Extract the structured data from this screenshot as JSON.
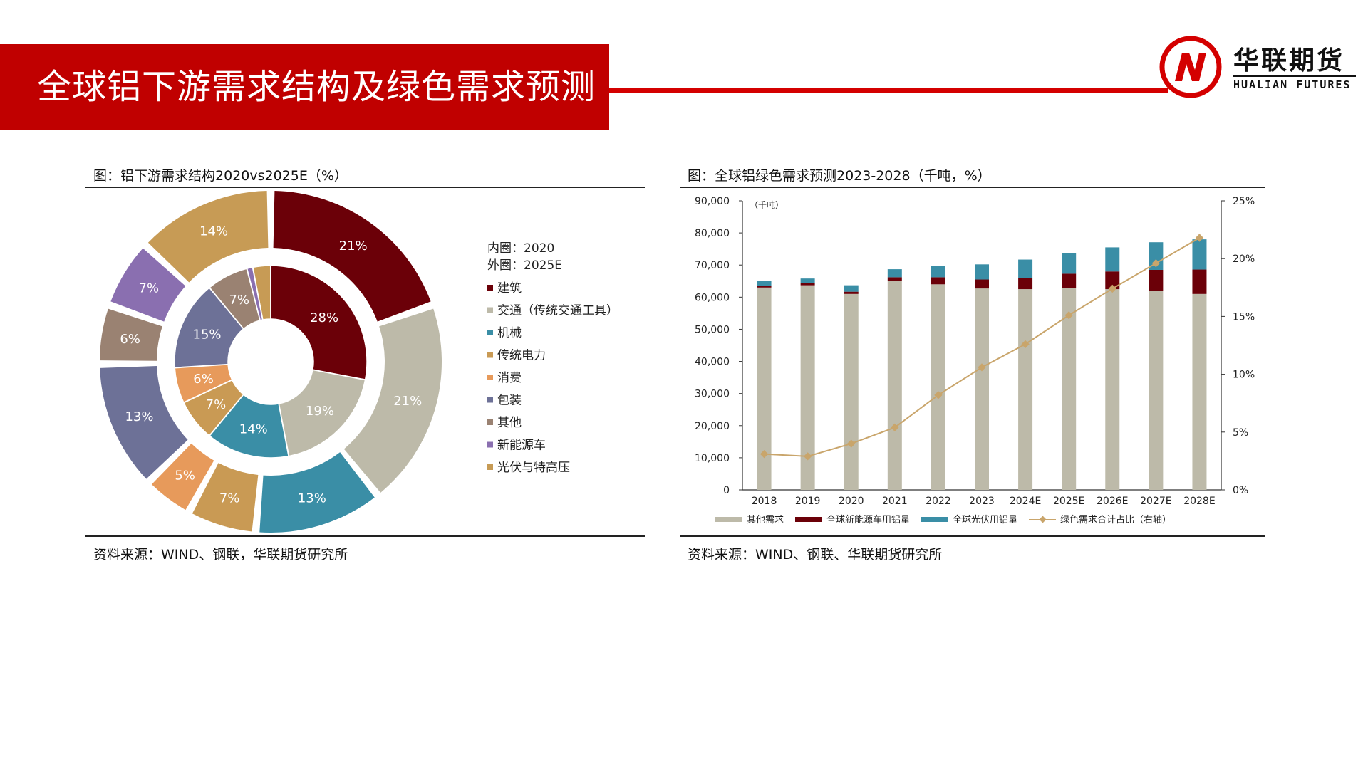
{
  "page": {
    "title": "全球铝下游需求结构及绿色需求预测"
  },
  "logo": {
    "name_cn": "华联期货",
    "name_en": "HUALIAN FUTURES",
    "icon": "hualian-logo-icon"
  },
  "colors": {
    "title_bar": "#c00000",
    "accent_line": "#d40000"
  },
  "left_figure": {
    "caption": "图：铝下游需求结构2020vs2025E（%）",
    "source": "资料来源：WIND、钢联，华联期货研究所",
    "legend_title_inner": "内圈：2020",
    "legend_title_outer": "外圈：2025E"
  },
  "right_figure": {
    "caption": "图：全球铝绿色需求预测2023-2028（千吨，%）",
    "source": "资料来源：WIND、钢联、华联期货研究所"
  },
  "chart_data": [
    {
      "type": "pie",
      "subtype": "double-donut",
      "categories": [
        "建筑",
        "交通（传统交通工具）",
        "机械",
        "传统电力",
        "消费",
        "包装",
        "其他",
        "新能源车",
        "光伏与特高压"
      ],
      "colors": [
        "#6b0008",
        "#bdbaa9",
        "#3a8ea6",
        "#c99a54",
        "#e79a5b",
        "#6d7197",
        "#9a8272",
        "#8a6fb0",
        "#c79b55"
      ],
      "series": [
        {
          "name": "内圈：2020",
          "values": [
            28,
            19,
            14,
            7,
            6,
            15,
            7,
            1,
            3
          ],
          "labels": [
            "28%",
            "19%",
            "14%",
            "7%",
            "6%",
            "15%",
            "7%",
            "",
            ""
          ]
        },
        {
          "name": "外圈：2025E",
          "values": [
            21,
            21,
            13,
            7,
            5,
            13,
            6,
            7,
            14
          ],
          "labels": [
            "21%",
            "21%",
            "13%",
            "7%",
            "5%",
            "13%",
            "6%",
            "7%",
            "14%"
          ]
        }
      ],
      "legend_position": "right"
    },
    {
      "type": "bar",
      "subtype": "stacked-bar-with-line",
      "categories": [
        "2018",
        "2019",
        "2020",
        "2021",
        "2022",
        "2023",
        "2024E",
        "2025E",
        "2026E",
        "2027E",
        "2028E"
      ],
      "series": [
        {
          "name": "其他需求",
          "color": "#bdbaa9",
          "values": [
            63000,
            63700,
            61000,
            65000,
            64000,
            62700,
            62500,
            62800,
            62500,
            62000,
            61000
          ]
        },
        {
          "name": "全球新能源车用铝量",
          "color": "#6b0008",
          "values": [
            600,
            600,
            700,
            1200,
            2200,
            2800,
            3500,
            4500,
            5500,
            6500,
            7600
          ]
        },
        {
          "name": "全球光伏用铝量",
          "color": "#3a8ea6",
          "values": [
            1500,
            1500,
            2000,
            2500,
            3500,
            4700,
            5700,
            6400,
            7500,
            8600,
            9400
          ]
        },
        {
          "name": "绿色需求合计占比（右轴）",
          "color": "#c9a56b",
          "axis": "right",
          "values": [
            3.1,
            2.9,
            4.0,
            5.4,
            8.2,
            10.6,
            12.6,
            15.1,
            17.4,
            19.6,
            21.8
          ]
        }
      ],
      "y_left": {
        "label": "（千吨）",
        "min": 0,
        "max": 90000,
        "ticks": [
          "0",
          "10,000",
          "20,000",
          "30,000",
          "40,000",
          "50,000",
          "60,000",
          "70,000",
          "80,000",
          "90,000"
        ]
      },
      "y_right": {
        "min": 0,
        "max": 25,
        "ticks": [
          "0%",
          "5%",
          "10%",
          "15%",
          "20%",
          "25%"
        ]
      },
      "grid": false,
      "legend_position": "bottom"
    }
  ]
}
